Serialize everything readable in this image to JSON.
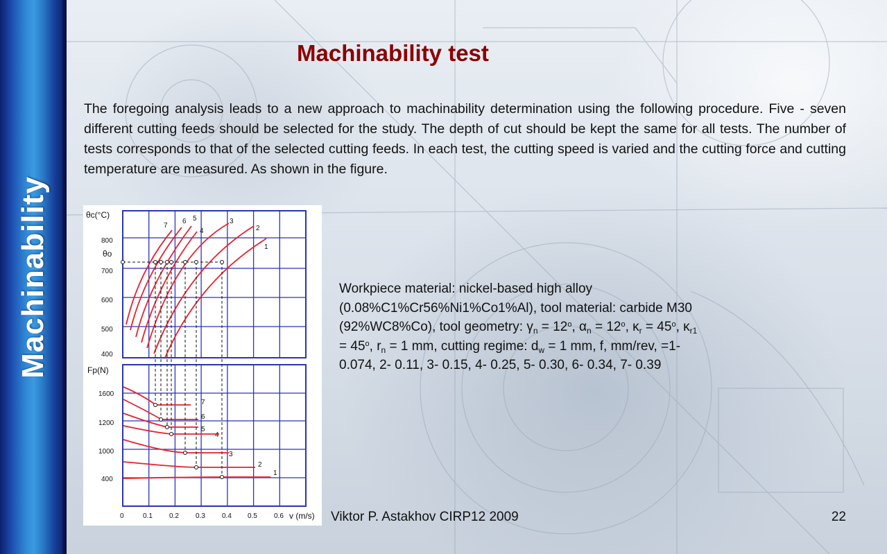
{
  "sidebar": {
    "label": "Machinability"
  },
  "slide": {
    "title": "Machinability test",
    "intro": "The foregoing analysis leads to a new approach to machinability determination using the following procedure. Five - seven different cutting feeds should be selected for the study. The depth of cut should be kept the same for all tests. The number of tests corresponds to that of the selected cutting feeds. In each test, the cutting speed is varied and the cutting force and cutting temperature are measured. As shown in the figure.",
    "caption": {
      "line1": "Workpiece material: nickel-based high alloy",
      "line2": "(0.08%C1%Cr56%Ni1%Co1%Al),  tool material: carbide M30",
      "line3_a": "(92%WC8%Co), tool geometry: γ",
      "gamma_sub": "n",
      "gamma_val": " = 12",
      "deg1": "o",
      "alpha_txt": ", α",
      "alpha_sub": "n",
      "alpha_val": " = 12",
      "deg2": "o",
      "kappa_txt": ", κ",
      "kappa_sub": "r",
      "kappa_val": " = 45",
      "deg3": "o",
      "kappa1_txt": ", κ",
      "kappa1_sub": "r1",
      "line4_a": "= 45",
      "deg4": "o",
      "rn_txt": ", r",
      "rn_sub": "n",
      "rn_val": " = 1 mm,  cutting regime: d",
      "dw_sub": "w",
      "feeds": " = 1 mm, f, mm/rev, =1-",
      "line5": "0.074, 2- 0.11, 3- 0.15, 4- 0.25, 5- 0.30, 6- 0.34, 7- 0.39"
    },
    "footer": "Viktor P. Astakhov CIRP12 2009",
    "page_number": "22"
  },
  "figure": {
    "curve_color": "#e8202a",
    "temp_axis_label": "θc(°C)",
    "theta_o_label": "θo",
    "force_axis_label": "Fp(N)",
    "x_axis_label": "v (m/s)",
    "x_ticks": [
      "0",
      "0.1",
      "0.2",
      "0.3",
      "0.4",
      "0.5",
      "0.6"
    ],
    "temp_ticks": [
      "800",
      "700",
      "600",
      "500",
      "400"
    ],
    "force_ticks": [
      "1600",
      "1200",
      "1000",
      "400"
    ],
    "temp_curve_labels": [
      "7",
      "6",
      "5",
      "4",
      "3",
      "2",
      "1"
    ],
    "force_curve_labels": [
      "7",
      "6",
      "5",
      "4",
      "3",
      "2",
      "1"
    ]
  }
}
